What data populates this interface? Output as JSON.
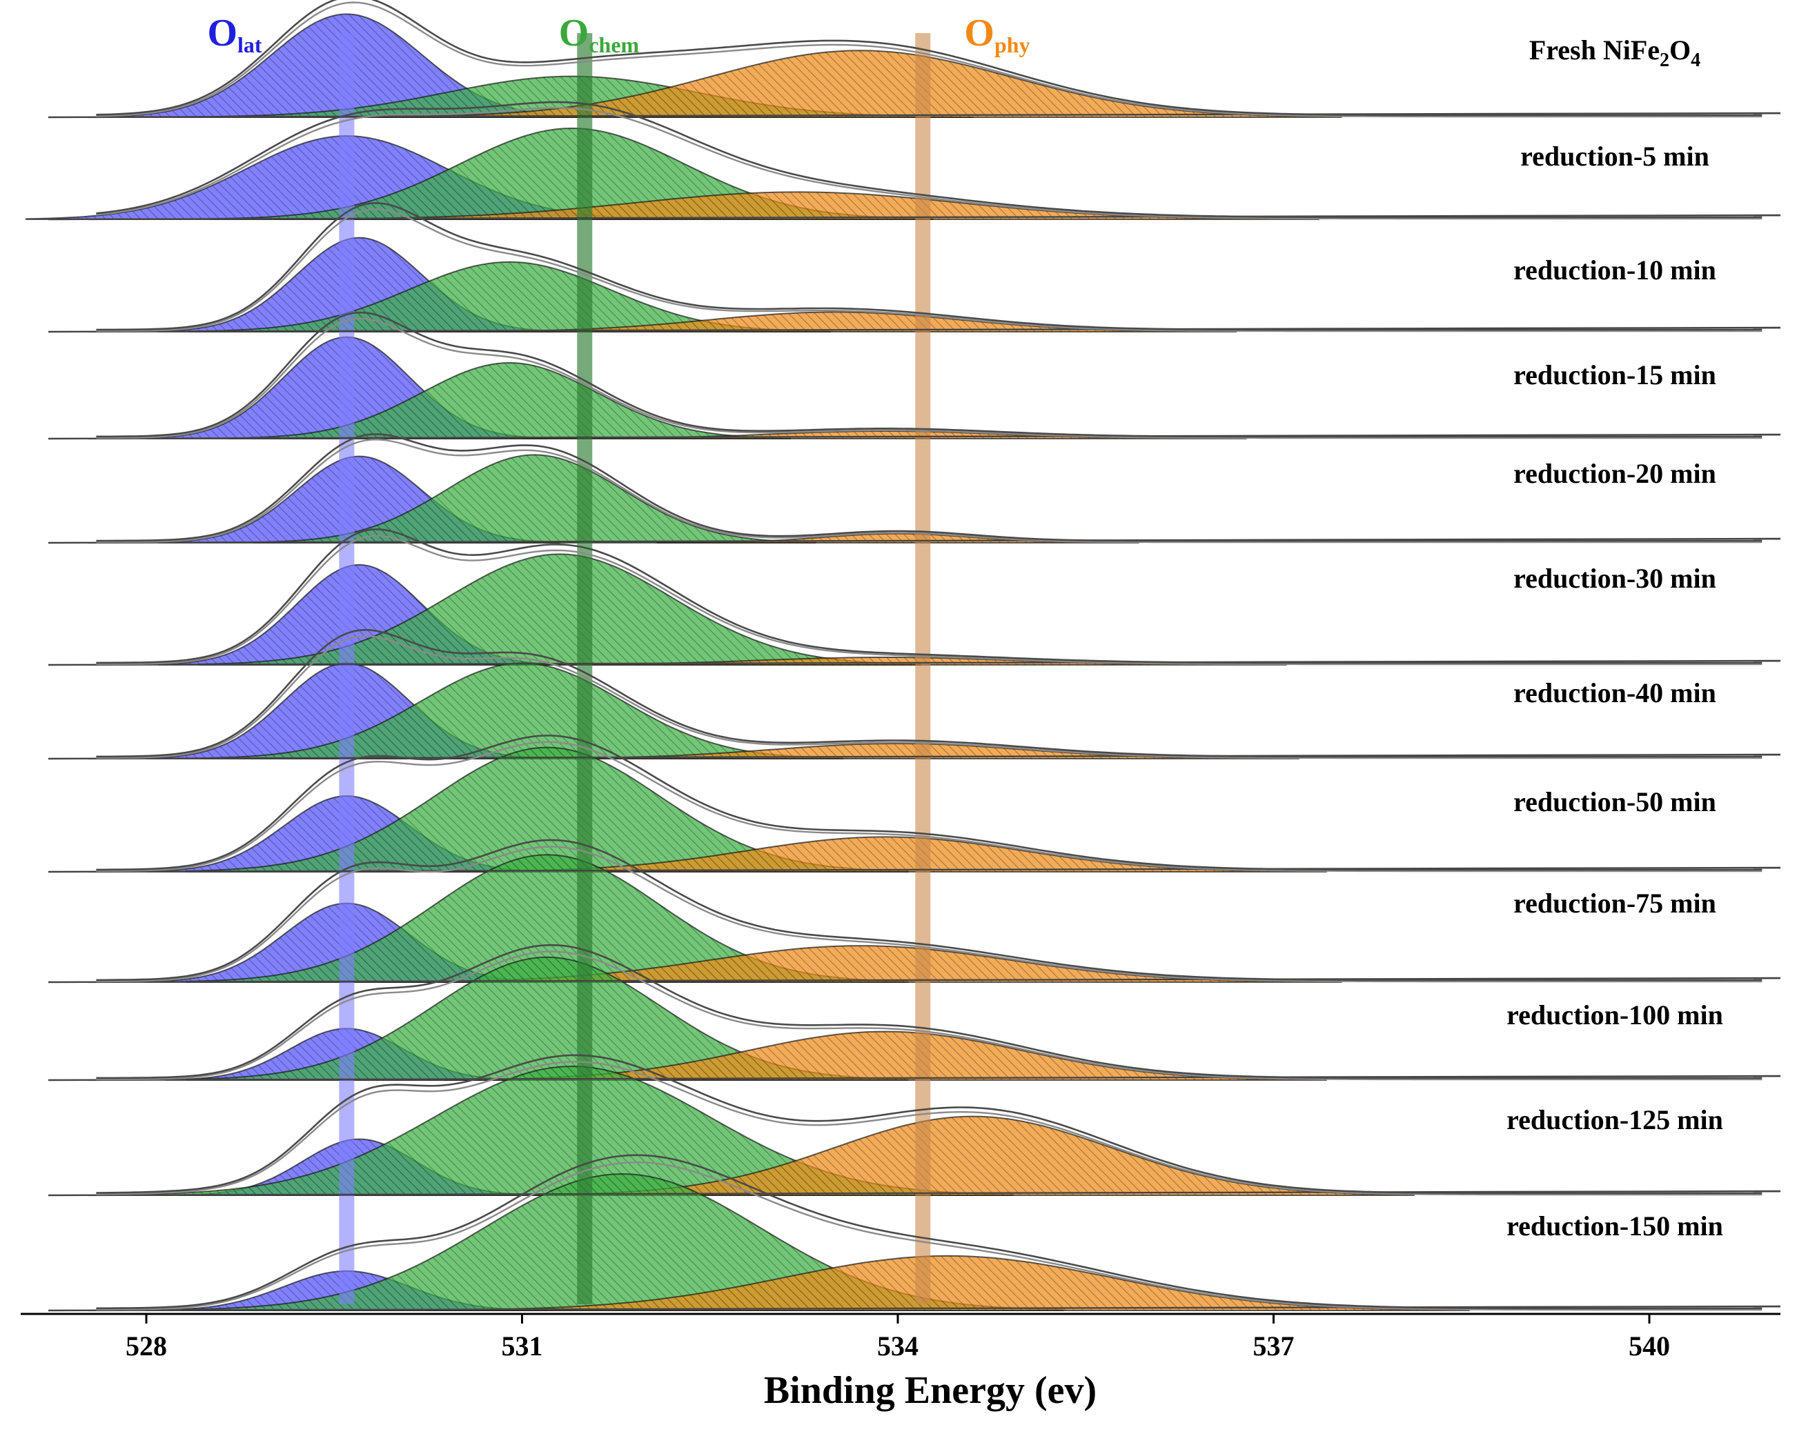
{
  "chart_data": {
    "type": "area",
    "title": "",
    "xlabel": "Binding Energy (ev)",
    "ylabel": "",
    "xlim": [
      527.3,
      540.9
    ],
    "xticks": [
      528,
      531,
      534,
      537,
      540
    ],
    "xtick_labels": [
      "528",
      "531",
      "534",
      "537",
      "540"
    ],
    "reference_lines": [
      {
        "name": "O_lat",
        "label_main": "O",
        "label_sub": "lat",
        "energy": 529.6,
        "color": "#7f7fff"
      },
      {
        "name": "O_chem",
        "label_main": "O",
        "label_sub": "chem",
        "energy": 531.5,
        "color": "#2e7d32"
      },
      {
        "name": "O_phy",
        "label_main": "O",
        "label_sub": "phy",
        "energy": 534.2,
        "color": "#c98a4b"
      }
    ],
    "component_colors": {
      "O_lat": "#5050ff",
      "O_chem": "#3cb043",
      "O_phy": "#ef8a17"
    },
    "series": [
      {
        "name": "Fresh NiFe2O4",
        "label_main": "Fresh NiFe",
        "label_sub1": "2",
        "label_mid": "O",
        "label_sub2": "4",
        "peaks": [
          {
            "component": "O_lat",
            "center": 529.6,
            "sigma": 0.6,
            "amplitude": 0.68
          },
          {
            "component": "O_chem",
            "center": 531.4,
            "sigma": 1.0,
            "amplitude": 0.27
          },
          {
            "component": "O_phy",
            "center": 533.7,
            "sigma": 1.2,
            "amplitude": 0.44
          }
        ]
      },
      {
        "name": "reduction-5 min",
        "peaks": [
          {
            "component": "O_lat",
            "center": 529.6,
            "sigma": 0.8,
            "amplitude": 0.55
          },
          {
            "component": "O_chem",
            "center": 531.4,
            "sigma": 0.9,
            "amplitude": 0.6
          },
          {
            "component": "O_phy",
            "center": 533.2,
            "sigma": 1.3,
            "amplitude": 0.18
          }
        ]
      },
      {
        "name": "reduction-10 min",
        "peaks": [
          {
            "component": "O_lat",
            "center": 529.7,
            "sigma": 0.5,
            "amplitude": 0.62
          },
          {
            "component": "O_chem",
            "center": 530.9,
            "sigma": 0.8,
            "amplitude": 0.46
          },
          {
            "component": "O_phy",
            "center": 533.5,
            "sigma": 1.0,
            "amplitude": 0.13
          }
        ]
      },
      {
        "name": "reduction-15 min",
        "peaks": [
          {
            "component": "O_lat",
            "center": 529.6,
            "sigma": 0.5,
            "amplitude": 0.67
          },
          {
            "component": "O_chem",
            "center": 530.9,
            "sigma": 0.7,
            "amplitude": 0.5
          },
          {
            "component": "O_phy",
            "center": 533.9,
            "sigma": 0.9,
            "amplitude": 0.05
          }
        ]
      },
      {
        "name": "reduction-20 min",
        "peaks": [
          {
            "component": "O_lat",
            "center": 529.7,
            "sigma": 0.5,
            "amplitude": 0.57
          },
          {
            "component": "O_chem",
            "center": 531.1,
            "sigma": 0.7,
            "amplitude": 0.58
          },
          {
            "component": "O_phy",
            "center": 534.0,
            "sigma": 0.6,
            "amplitude": 0.06
          }
        ]
      },
      {
        "name": "reduction-30 min",
        "peaks": [
          {
            "component": "O_lat",
            "center": 529.7,
            "sigma": 0.5,
            "amplitude": 0.66
          },
          {
            "component": "O_chem",
            "center": 531.3,
            "sigma": 0.9,
            "amplitude": 0.73
          },
          {
            "component": "O_phy",
            "center": 533.9,
            "sigma": 1.0,
            "amplitude": 0.05
          }
        ]
      },
      {
        "name": "reduction-40 min",
        "peaks": [
          {
            "component": "O_lat",
            "center": 529.6,
            "sigma": 0.5,
            "amplitude": 0.63
          },
          {
            "component": "O_chem",
            "center": 531.0,
            "sigma": 0.8,
            "amplitude": 0.63
          },
          {
            "component": "O_phy",
            "center": 534.0,
            "sigma": 1.0,
            "amplitude": 0.1
          }
        ]
      },
      {
        "name": "reduction-50 min",
        "peaks": [
          {
            "component": "O_lat",
            "center": 529.6,
            "sigma": 0.5,
            "amplitude": 0.5
          },
          {
            "component": "O_chem",
            "center": 531.2,
            "sigma": 0.9,
            "amplitude": 0.82
          },
          {
            "component": "O_phy",
            "center": 533.9,
            "sigma": 1.1,
            "amplitude": 0.23
          }
        ]
      },
      {
        "name": "reduction-75 min",
        "peaks": [
          {
            "component": "O_lat",
            "center": 529.6,
            "sigma": 0.5,
            "amplitude": 0.52
          },
          {
            "component": "O_chem",
            "center": 531.2,
            "sigma": 0.9,
            "amplitude": 0.84
          },
          {
            "component": "O_phy",
            "center": 533.7,
            "sigma": 1.2,
            "amplitude": 0.24
          }
        ]
      },
      {
        "name": "reduction-100 min",
        "peaks": [
          {
            "component": "O_lat",
            "center": 529.6,
            "sigma": 0.45,
            "amplitude": 0.34
          },
          {
            "component": "O_chem",
            "center": 531.2,
            "sigma": 0.9,
            "amplitude": 0.81
          },
          {
            "component": "O_phy",
            "center": 533.9,
            "sigma": 1.1,
            "amplitude": 0.32
          }
        ]
      },
      {
        "name": "reduction-125 min",
        "peaks": [
          {
            "component": "O_lat",
            "center": 529.7,
            "sigma": 0.45,
            "amplitude": 0.37
          },
          {
            "component": "O_chem",
            "center": 531.4,
            "sigma": 1.1,
            "amplitude": 0.85
          },
          {
            "component": "O_phy",
            "center": 534.6,
            "sigma": 1.1,
            "amplitude": 0.52
          }
        ]
      },
      {
        "name": "reduction-150 min",
        "peaks": [
          {
            "component": "O_lat",
            "center": 529.6,
            "sigma": 0.5,
            "amplitude": 0.26
          },
          {
            "component": "O_chem",
            "center": 531.8,
            "sigma": 1.1,
            "amplitude": 0.9
          },
          {
            "component": "O_phy",
            "center": 534.4,
            "sigma": 1.3,
            "amplitude": 0.36
          }
        ]
      }
    ]
  }
}
